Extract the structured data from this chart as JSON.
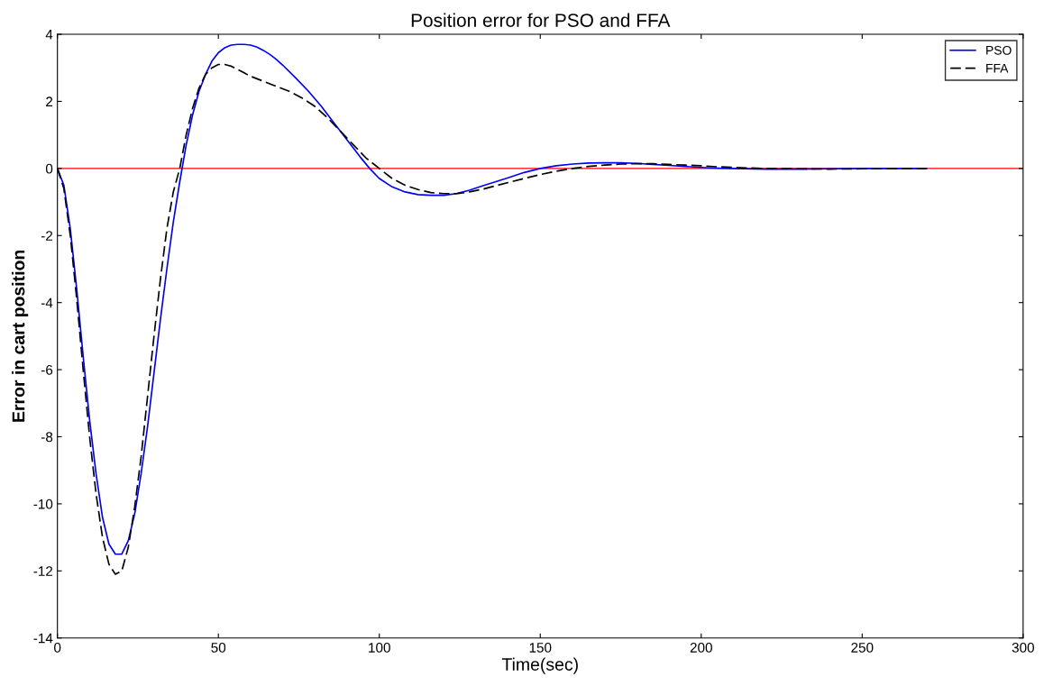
{
  "chart_data": {
    "type": "line",
    "title": "Position error for PSO and FFA",
    "xlabel": "Time(sec)",
    "ylabel": "Error in cart position",
    "xlim": [
      0,
      300
    ],
    "xticks": [
      0,
      50,
      100,
      150,
      200,
      250,
      300
    ],
    "ylim": [
      -14,
      4
    ],
    "yticks": [
      -14,
      -12,
      -10,
      -8,
      -6,
      -4,
      -2,
      0,
      2,
      4
    ],
    "grid": false,
    "legend": "top right",
    "ref_lines": [
      {
        "axis": "y",
        "value": 0,
        "color": "#ff0000",
        "line_style": "solid"
      }
    ],
    "series": [
      {
        "name": "PSO",
        "color": "#0000ff",
        "line_style": "solid",
        "x": [
          0,
          2,
          4,
          6,
          8,
          10,
          12,
          14,
          16,
          18,
          20,
          22,
          24,
          26,
          28,
          30,
          32,
          34,
          36,
          38,
          40,
          42,
          44,
          46,
          48,
          50,
          52,
          54,
          56,
          58,
          60,
          62,
          64,
          66,
          68,
          70,
          74,
          78,
          82,
          86,
          90,
          94,
          97,
          100,
          104,
          108,
          112,
          116,
          120,
          124,
          128,
          132,
          136,
          140,
          145,
          150,
          155,
          160,
          165,
          170,
          175,
          180,
          185,
          190,
          195,
          200,
          205,
          210,
          220,
          230,
          240,
          250,
          260,
          270
        ],
        "values": [
          0,
          -0.5,
          -1.8,
          -3.6,
          -5.6,
          -7.5,
          -9.1,
          -10.4,
          -11.2,
          -11.5,
          -11.5,
          -11.1,
          -10.3,
          -9.1,
          -7.7,
          -6.1,
          -4.5,
          -3.0,
          -1.6,
          -0.4,
          0.7,
          1.6,
          2.3,
          2.8,
          3.2,
          3.45,
          3.6,
          3.68,
          3.7,
          3.7,
          3.68,
          3.62,
          3.52,
          3.4,
          3.25,
          3.08,
          2.7,
          2.3,
          1.85,
          1.35,
          0.85,
          0.35,
          0.0,
          -0.3,
          -0.55,
          -0.7,
          -0.78,
          -0.8,
          -0.8,
          -0.75,
          -0.65,
          -0.52,
          -0.4,
          -0.28,
          -0.12,
          0.0,
          0.08,
          0.13,
          0.16,
          0.17,
          0.17,
          0.15,
          0.12,
          0.09,
          0.06,
          0.03,
          0.01,
          0.0,
          -0.02,
          -0.02,
          -0.01,
          0.0,
          0.0,
          0.0
        ]
      },
      {
        "name": "FFA",
        "color": "#000000",
        "line_style": "dashed",
        "x": [
          0,
          2,
          4,
          6,
          8,
          10,
          12,
          14,
          16,
          18,
          20,
          22,
          24,
          26,
          28,
          30,
          32,
          34,
          36,
          38,
          40,
          42,
          44,
          46,
          48,
          50,
          52,
          54,
          56,
          58,
          60,
          64,
          68,
          72,
          76,
          80,
          84,
          88,
          92,
          96,
          100,
          104,
          108,
          112,
          116,
          120,
          124,
          128,
          132,
          136,
          140,
          145,
          150,
          155,
          160,
          165,
          170,
          175,
          180,
          185,
          190,
          195,
          200,
          205,
          210,
          220,
          230,
          240,
          250,
          260,
          270
        ],
        "values": [
          0,
          -0.6,
          -2.0,
          -3.9,
          -6.0,
          -8.0,
          -9.7,
          -11.0,
          -11.8,
          -12.1,
          -12.0,
          -11.3,
          -10.1,
          -8.6,
          -6.8,
          -5.0,
          -3.3,
          -1.8,
          -0.7,
          0.0,
          1.0,
          1.8,
          2.4,
          2.8,
          3.0,
          3.1,
          3.1,
          3.05,
          2.95,
          2.85,
          2.75,
          2.6,
          2.45,
          2.3,
          2.1,
          1.85,
          1.5,
          1.1,
          0.7,
          0.3,
          0.0,
          -0.3,
          -0.5,
          -0.63,
          -0.72,
          -0.75,
          -0.75,
          -0.7,
          -0.62,
          -0.52,
          -0.42,
          -0.3,
          -0.18,
          -0.08,
          0.0,
          0.06,
          0.1,
          0.13,
          0.14,
          0.14,
          0.12,
          0.1,
          0.08,
          0.05,
          0.03,
          0.0,
          -0.01,
          -0.02,
          -0.01,
          0.0,
          0.0
        ]
      }
    ]
  }
}
